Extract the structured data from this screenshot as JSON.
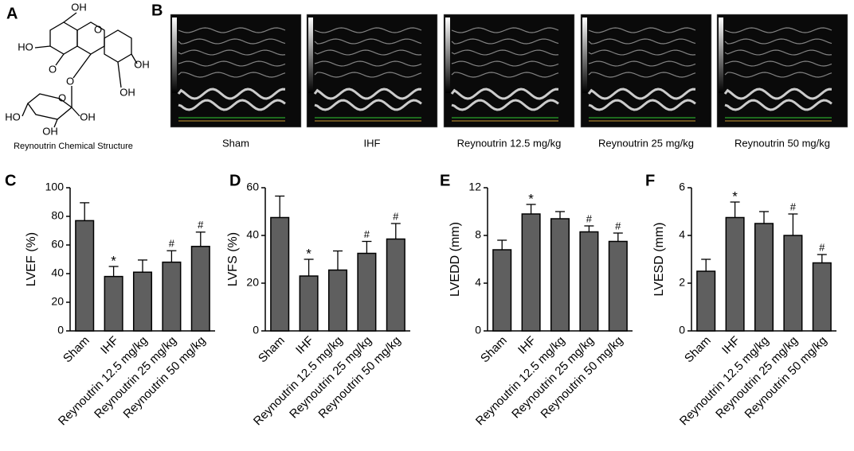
{
  "panel_labels": [
    "A",
    "B",
    "C",
    "D",
    "E",
    "F"
  ],
  "structure": {
    "atoms": [
      "OH",
      "HO",
      "O",
      "O",
      "O",
      "OH",
      "OH",
      "O",
      "HO",
      "OH",
      "OH"
    ],
    "caption": "Reynoutrin Chemical Structure"
  },
  "echo": {
    "labels": [
      "Sham",
      "IHF",
      "Reynoutrin 12.5 mg/kg",
      "Reynoutrin 25 mg/kg",
      "Reynoutrin 50 mg/kg"
    ]
  },
  "chart_data": [
    {
      "type": "bar",
      "y_label": "LVEF (%)",
      "color": "#5f5f5f",
      "categories": [
        "Sham",
        "IHF",
        "Reynoutrin 12.5 mg/kg",
        "Reynoutrin 25 mg/kg",
        "Reynoutrin 50 mg/kg"
      ],
      "values": [
        77,
        38,
        41,
        48,
        59
      ],
      "errors": [
        12.5,
        7,
        8.5,
        8,
        10
      ],
      "markers": [
        null,
        "*",
        null,
        "#",
        "#"
      ],
      "ylim": [
        0,
        100
      ],
      "yticks": [
        0,
        20,
        40,
        60,
        80,
        100
      ]
    },
    {
      "type": "bar",
      "y_label": "LVFS (%)",
      "color": "#5f5f5f",
      "categories": [
        "Sham",
        "IHF",
        "Reynoutrin 12.5 mg/kg",
        "Reynoutrin 25 mg/kg",
        "Reynoutrin 50 mg/kg"
      ],
      "values": [
        47.5,
        23,
        25.5,
        32.5,
        38.5
      ],
      "errors": [
        9,
        7,
        8,
        5,
        6.5
      ],
      "markers": [
        null,
        "*",
        null,
        "#",
        "#"
      ],
      "ylim": [
        0,
        60
      ],
      "yticks": [
        0,
        20,
        40,
        60
      ]
    },
    {
      "type": "bar",
      "y_label": "LVEDD (mm)",
      "color": "#5f5f5f",
      "categories": [
        "Sham",
        "IHF",
        "Reynoutrin 12.5 mg/kg",
        "Reynoutrin 25 mg/kg",
        "Reynoutrin 50 mg/kg"
      ],
      "values": [
        6.8,
        9.8,
        9.4,
        8.3,
        7.5
      ],
      "errors": [
        0.8,
        0.8,
        0.6,
        0.5,
        0.7
      ],
      "markers": [
        null,
        "*",
        null,
        "#",
        "#"
      ],
      "ylim": [
        0,
        12
      ],
      "yticks": [
        0,
        4,
        8,
        12
      ]
    },
    {
      "type": "bar",
      "y_label": "LVESD (mm)",
      "color": "#5f5f5f",
      "categories": [
        "Sham",
        "IHF",
        "Reynoutrin 12.5 mg/kg",
        "Reynoutrin 25 mg/kg",
        "Reynoutrin 50 mg/kg"
      ],
      "values": [
        2.5,
        4.75,
        4.5,
        4.0,
        2.85
      ],
      "errors": [
        0.5,
        0.65,
        0.5,
        0.9,
        0.35
      ],
      "markers": [
        null,
        "*",
        null,
        "#",
        "#"
      ],
      "ylim": [
        0,
        6
      ],
      "yticks": [
        0,
        2,
        4,
        6
      ]
    }
  ]
}
